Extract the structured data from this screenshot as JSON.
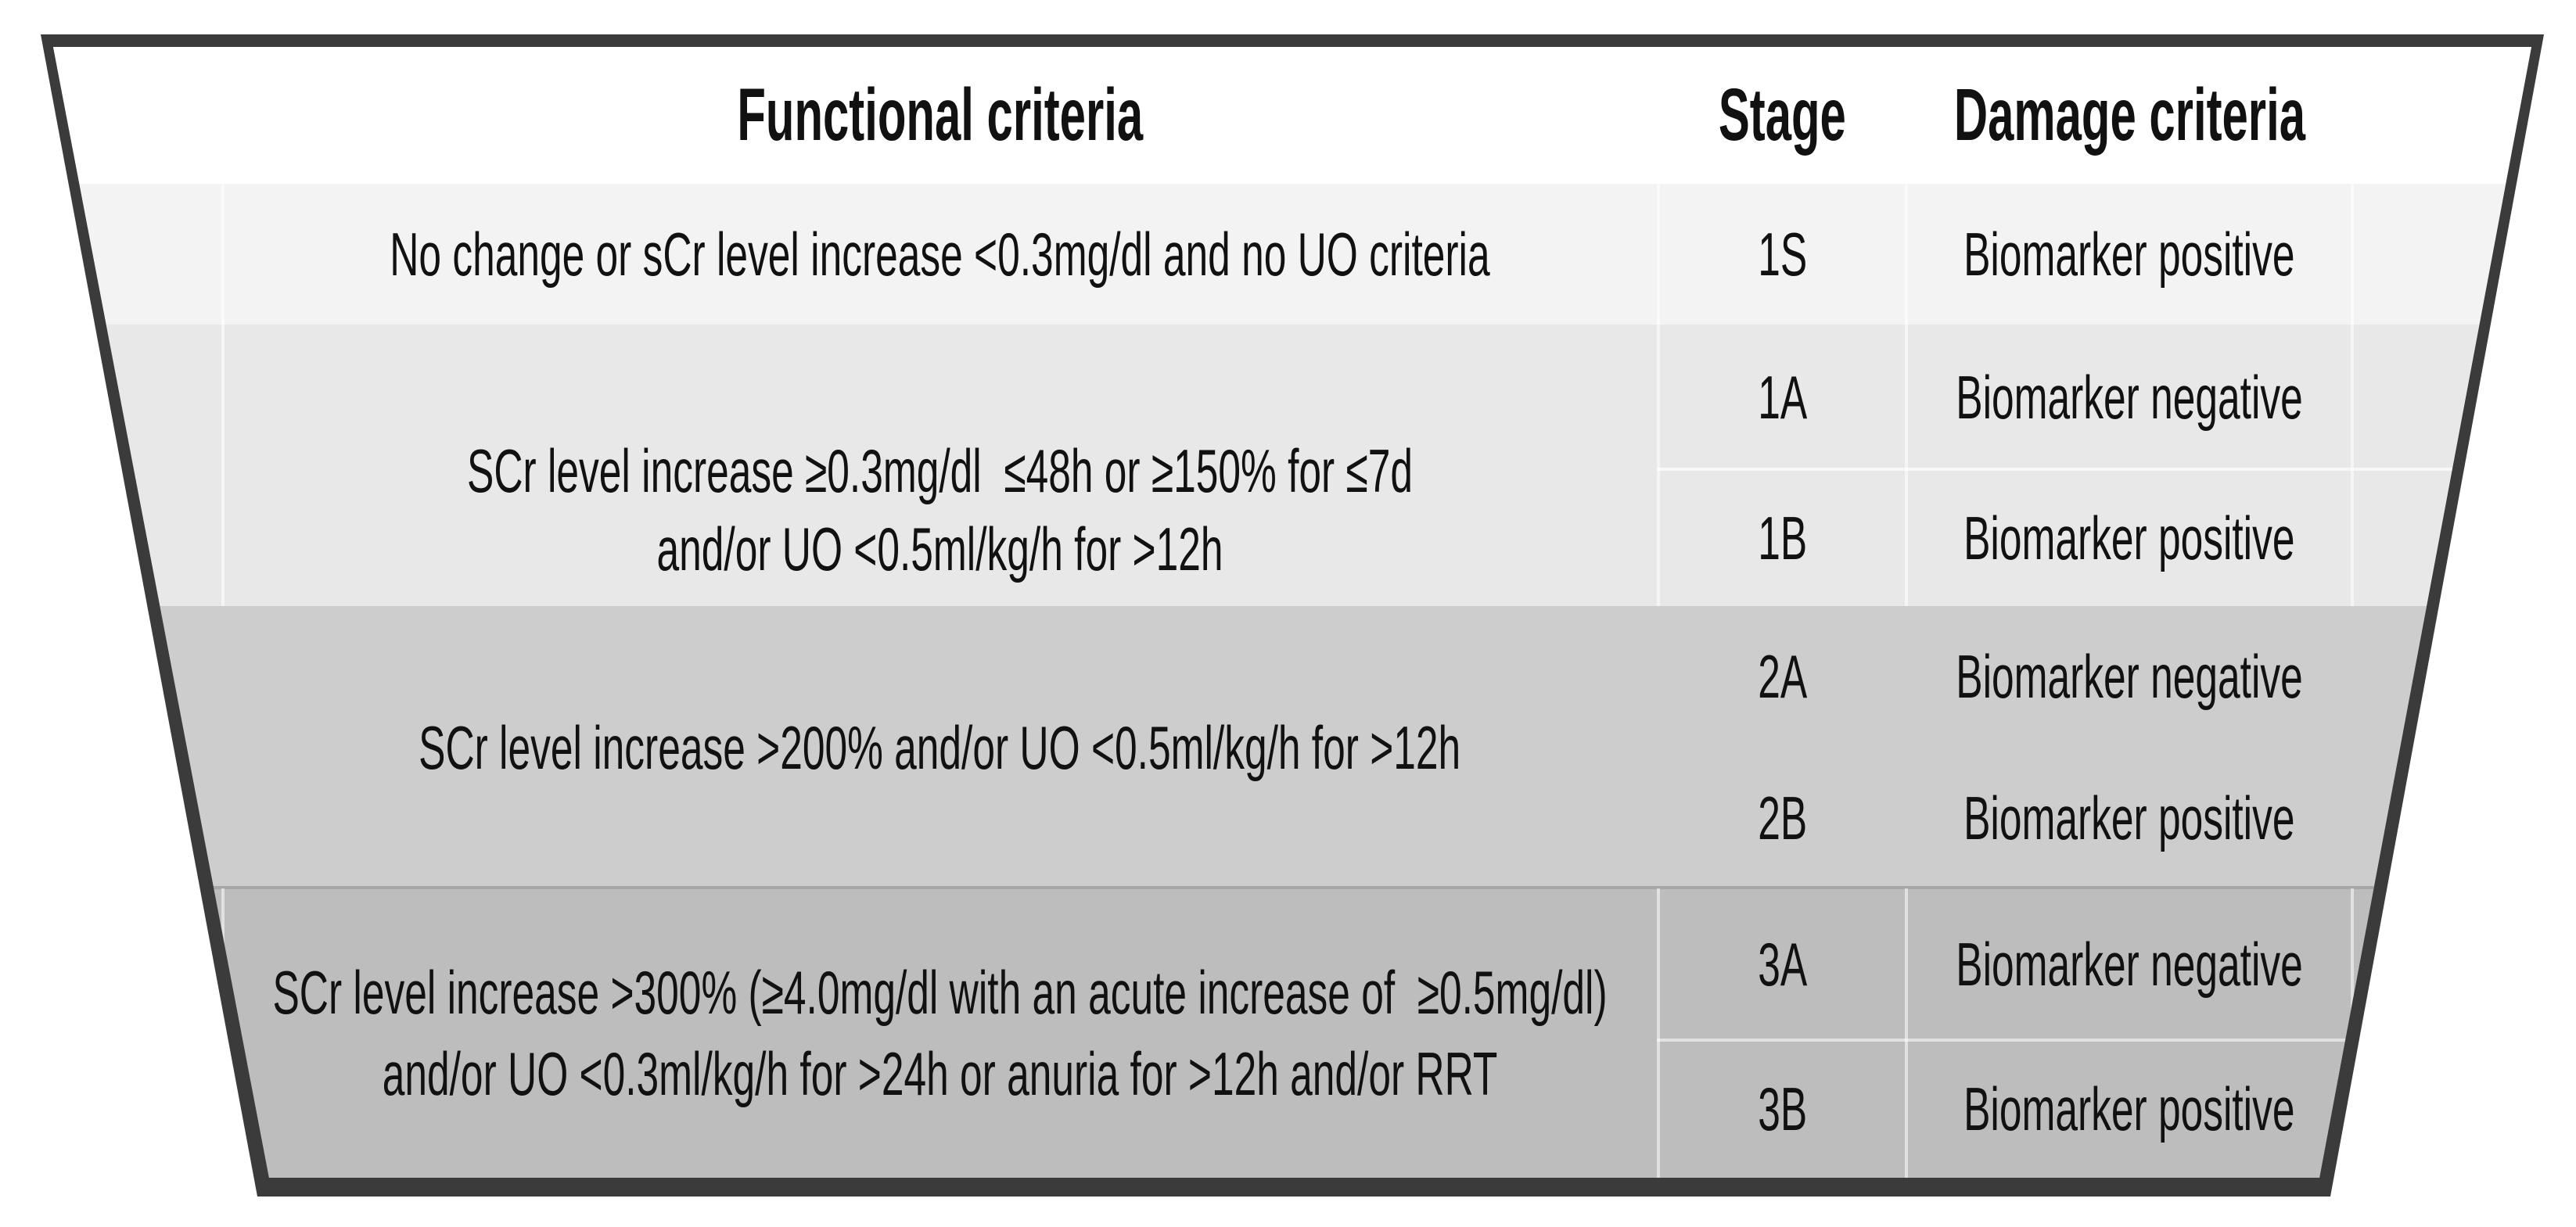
{
  "figure": {
    "headers": {
      "functional": "Functional criteria",
      "stage": "Stage",
      "damage": "Damage criteria"
    },
    "functional": {
      "stage1s": "No change or sCr level increase <0.3mg/dl and no UO criteria",
      "stage1_line1": "SCr level increase ≥0.3mg/dl  ≤48h or ≥150% for ≤7d",
      "stage1_line2": "and/or UO <0.5ml/kg/h for >12h",
      "stage2": "SCr level increase >200% and/or UO <0.5ml/kg/h for >12h",
      "stage3_line1": "SCr level increase >300% (≥4.0mg/dl with an acute increase of  ≥0.5mg/dl)",
      "stage3_line2": "and/or UO <0.3ml/kg/h for >24h or anuria for >12h and/or RRT"
    },
    "rows": [
      {
        "stage": "1S",
        "damage": "Biomarker positive"
      },
      {
        "stage": "1A",
        "damage": "Biomarker negative"
      },
      {
        "stage": "1B",
        "damage": "Biomarker positive"
      },
      {
        "stage": "2A",
        "damage": "Biomarker negative"
      },
      {
        "stage": "2B",
        "damage": "Biomarker positive"
      },
      {
        "stage": "3A",
        "damage": "Biomarker negative"
      },
      {
        "stage": "3B",
        "damage": "Biomarker positive"
      }
    ],
    "colors": {
      "border": "#3b3b3b",
      "header_bg": "#ffffff",
      "band_1s": "#f3f3f3",
      "band_stage1": "#e8e8e8",
      "band_stage2": "#cdcdcd",
      "band_stage3": "#bdbdbd",
      "text": "#111111"
    }
  }
}
